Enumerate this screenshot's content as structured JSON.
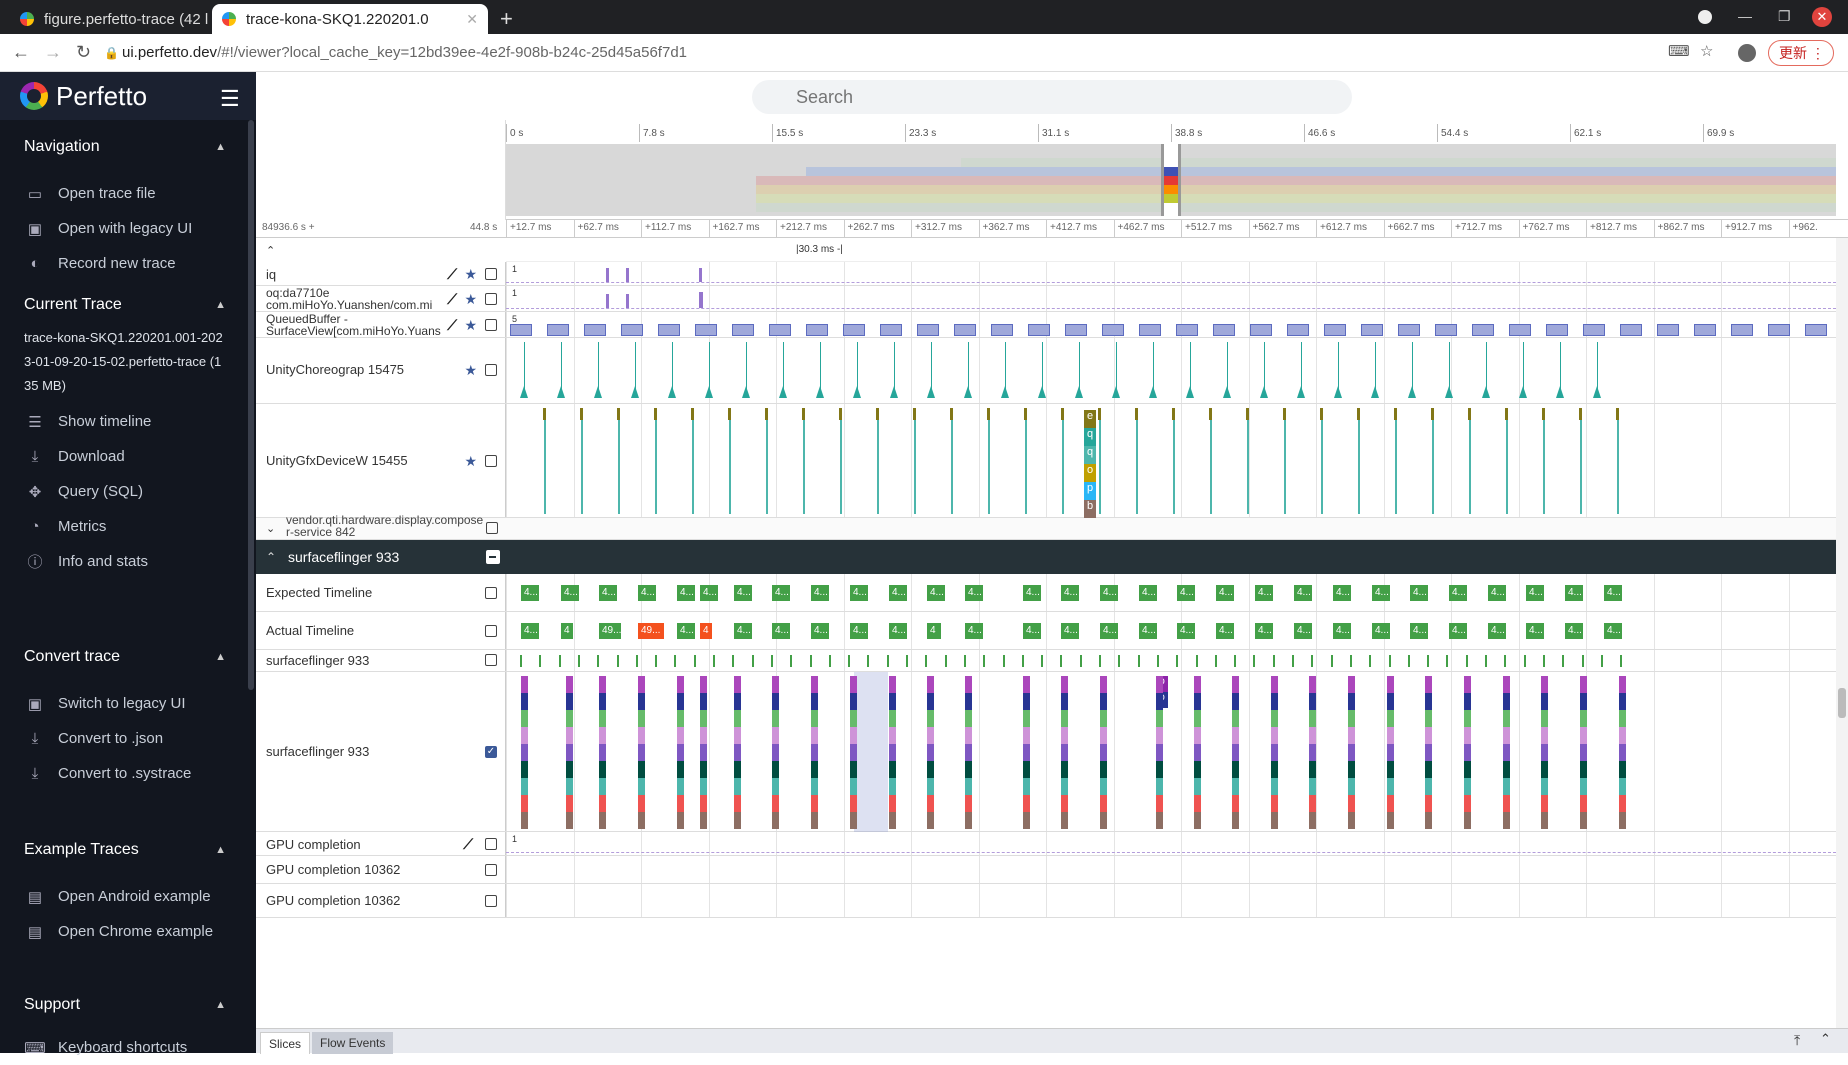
{
  "browser": {
    "tabs": [
      {
        "title": "figure.perfetto-trace (42 l",
        "active": false
      },
      {
        "title": "trace-kona-SKQ1.220201.0",
        "active": true
      }
    ],
    "url_host": "ui.perfetto.dev",
    "url_rest": "/#!/viewer?local_cache_key=12bd39ee-4e2f-908b-b24c-25d45a56f7d1",
    "update_label": "更新"
  },
  "sidebar": {
    "brand": "Perfetto",
    "sections": [
      {
        "title": "Navigation",
        "items": [
          {
            "label": "Open trace file",
            "icon": "folder-icon"
          },
          {
            "label": "Open with legacy UI",
            "icon": "legacy-window-icon"
          },
          {
            "label": "Record new trace",
            "icon": "record-toggle-icon"
          }
        ]
      },
      {
        "title": "Current Trace",
        "info": "trace-kona-SKQ1.220201.001-2023-01-09-20-15-02.perfetto-trace (135 MB)",
        "items": [
          {
            "label": "Show timeline",
            "icon": "timeline-icon"
          },
          {
            "label": "Download",
            "icon": "download-icon"
          },
          {
            "label": "Query (SQL)",
            "icon": "query-icon"
          },
          {
            "label": "Metrics",
            "icon": "metrics-gauge-icon"
          },
          {
            "label": "Info and stats",
            "icon": "info-icon"
          }
        ]
      },
      {
        "title": "Convert trace",
        "items": [
          {
            "label": "Switch to legacy UI",
            "icon": "legacy-window-icon"
          },
          {
            "label": "Convert to .json",
            "icon": "download-icon"
          },
          {
            "label": "Convert to .systrace",
            "icon": "download-icon"
          }
        ]
      },
      {
        "title": "Example Traces",
        "items": [
          {
            "label": "Open Android example",
            "icon": "document-icon"
          },
          {
            "label": "Open Chrome example",
            "icon": "document-icon"
          }
        ]
      },
      {
        "title": "Support",
        "items": [
          {
            "label": "Keyboard shortcuts",
            "icon": "keyboard-icon"
          }
        ]
      }
    ]
  },
  "search": {
    "placeholder": "Search"
  },
  "overview": {
    "ticks": [
      "0 s",
      "7.8 s",
      "15.5 s",
      "23.3 s",
      "31.1 s",
      "38.8 s",
      "46.6 s",
      "54.4 s",
      "62.1 s",
      "69.9 s"
    ]
  },
  "timeline": {
    "offset_label": "84936.6 s +",
    "span_label": "44.8 s",
    "ticks": [
      "+12.7 ms",
      "+62.7 ms",
      "+112.7 ms",
      "+162.7 ms",
      "+212.7 ms",
      "+262.7 ms",
      "+312.7 ms",
      "+362.7 ms",
      "+412.7 ms",
      "+462.7 ms",
      "+512.7 ms",
      "+562.7 ms",
      "+612.7 ms",
      "+662.7 ms",
      "+712.7 ms",
      "+762.7 ms",
      "+812.7 ms",
      "+862.7 ms",
      "+912.7 ms",
      "+962."
    ],
    "selection_label": "30.3 ms"
  },
  "tracks": {
    "iq": {
      "name": "iq",
      "max": "1"
    },
    "oq": {
      "name_line1": "oq:da7710e",
      "name_line2": "com.miHoYo.Yuanshen/com.mi",
      "max": "1"
    },
    "queued": {
      "name_line1": "QueuedBuffer -",
      "name_line2": "SurfaceView[com.miHoYo.Yuans",
      "max": "5"
    },
    "choreo": {
      "name": "UnityChoreograp 15475"
    },
    "gfx": {
      "name": "UnityGfxDeviceW 15455",
      "stack_letters": [
        "e",
        "q",
        "q",
        "o",
        "p",
        "b"
      ]
    },
    "composer": {
      "name_line1": "vendor.qti.hardware.display.compose",
      "name_line2": "r-service 842"
    },
    "sf_process": {
      "name": "surfaceflinger 933"
    },
    "expected": {
      "name": "Expected Timeline",
      "label": "4..."
    },
    "actual": {
      "name": "Actual Timeline",
      "labels": [
        "4...",
        "4",
        "49...",
        "49...",
        "4"
      ]
    },
    "sf_main": {
      "name": "surfaceflinger 933"
    },
    "sf_thread": {
      "name": "surfaceflinger 933",
      "stack_letters": [
        "o",
        "o"
      ]
    },
    "gpu": {
      "name": "GPU completion",
      "max": "1"
    },
    "gpu2": {
      "name": "GPU completion 10362"
    },
    "gpu3": {
      "name": "GPU completion 10362"
    }
  },
  "bottom": {
    "tabs": [
      "Slices",
      "Flow Events"
    ]
  },
  "colors": {
    "accent": "#3b5998",
    "slice_green": "#43a047",
    "slice_red": "#f4511e",
    "track_purple": "#9575cd",
    "teal": "#26a69a"
  }
}
